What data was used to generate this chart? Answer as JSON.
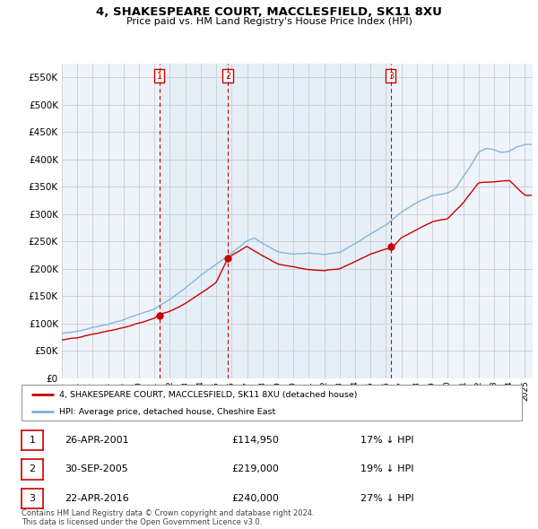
{
  "title": "4, SHAKESPEARE COURT, MACCLESFIELD, SK11 8XU",
  "subtitle": "Price paid vs. HM Land Registry's House Price Index (HPI)",
  "property_label": "4, SHAKESPEARE COURT, MACCLESFIELD, SK11 8XU (detached house)",
  "hpi_label": "HPI: Average price, detached house, Cheshire East",
  "footnote1": "Contains HM Land Registry data © Crown copyright and database right 2024.",
  "footnote2": "This data is licensed under the Open Government Licence v3.0.",
  "sales": [
    {
      "num": 1,
      "date": "26-APR-2001",
      "price": 114950,
      "pct": "17%",
      "dir": "↓"
    },
    {
      "num": 2,
      "date": "30-SEP-2005",
      "price": 219000,
      "pct": "19%",
      "dir": "↓"
    },
    {
      "num": 3,
      "date": "22-APR-2016",
      "price": 240000,
      "pct": "27%",
      "dir": "↓"
    }
  ],
  "sale_years": [
    2001.32,
    2005.75,
    2016.32
  ],
  "sale_prices": [
    114950,
    219000,
    240000
  ],
  "ylim": [
    0,
    575000
  ],
  "xlim": [
    1995.0,
    2025.5
  ],
  "sale_color": "#cc0000",
  "hpi_color": "#7ab0d4",
  "property_line_color": "#cc0000",
  "vline_color": "#cc0000",
  "grid_color": "#cccccc",
  "background_color": "#ffffff",
  "plot_bg_color": "#eef4fa"
}
